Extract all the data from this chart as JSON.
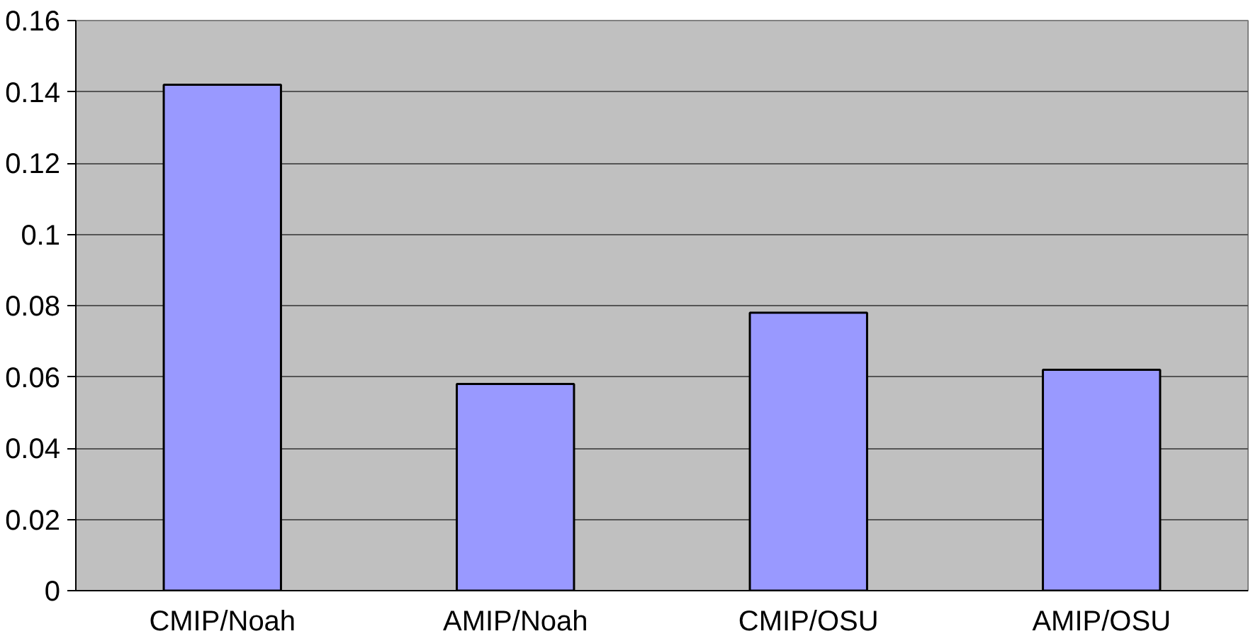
{
  "chart_data": {
    "type": "bar",
    "categories": [
      "CMIP/Noah",
      "AMIP/Noah",
      "CMIP/OSU",
      "AMIP/OSU"
    ],
    "values": [
      0.142,
      0.058,
      0.078,
      0.062
    ],
    "color": "#9999ff",
    "ylim": [
      0,
      0.16
    ],
    "yticks": [
      0,
      {
        "value": 0.02,
        "label": "0.02"
      },
      {
        "value": 0.04,
        "label": "0.04"
      },
      {
        "value": 0.06,
        "label": "0.06"
      },
      {
        "value": 0.08,
        "label": "0.08"
      },
      {
        "value": 0.1,
        "label": "0.1"
      },
      {
        "value": 0.12,
        "label": "0.12"
      },
      {
        "value": 0.14,
        "label": "0.14"
      },
      {
        "value": 0.16,
        "label": "0.16"
      }
    ],
    "grid": "y"
  }
}
